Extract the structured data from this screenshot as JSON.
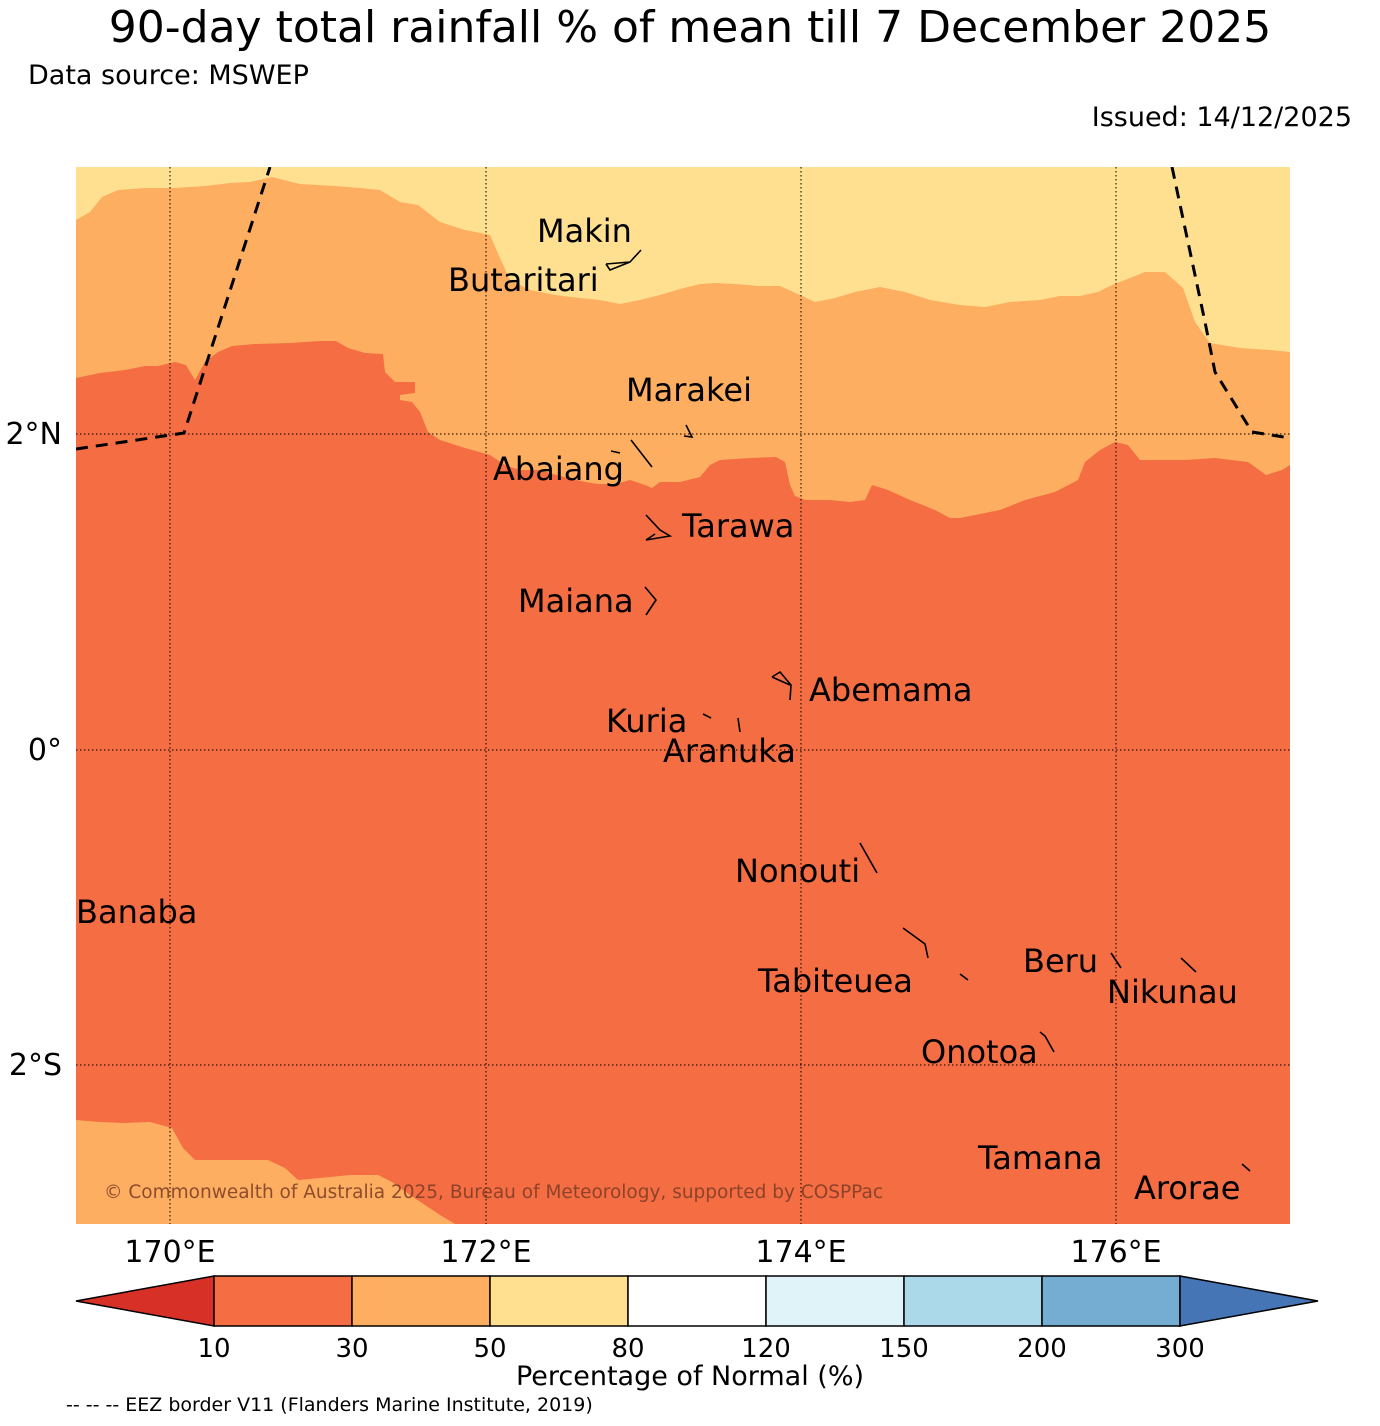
{
  "title": "90-day total rainfall % of mean till 7 December 2025",
  "data_source": "Data source: MSWEP",
  "issued": "Issued: 14/12/2025",
  "copyright": "© Commonwealth of Australia 2025, Bureau of Meteorology, supported by COSPPac",
  "axes": {
    "lon_labels": [
      "170°E",
      "172°E",
      "174°E",
      "176°E"
    ],
    "lat_labels": [
      "2°N",
      "0°",
      "2°S"
    ]
  },
  "islands": {
    "makin": "Makin",
    "butaritari": "Butaritari",
    "marakei": "Marakei",
    "abaiang": "Abaiang",
    "tarawa": "Tarawa",
    "maiana": "Maiana",
    "abemama": "Abemama",
    "kuria": "Kuria",
    "aranuka": "Aranuka",
    "nonouti": "Nonouti",
    "banaba": "Banaba",
    "beru": "Beru",
    "tabiteuea": "Tabiteuea",
    "nikunau": "Nikunau",
    "onotoa": "Onotoa",
    "tamana": "Tamana",
    "arorae": "Arorae"
  },
  "colorbar": {
    "label": "Percentage of Normal (%)",
    "ticks": [
      "10",
      "30",
      "50",
      "80",
      "120",
      "150",
      "200",
      "300"
    ],
    "colors": {
      "below_10": "#d73027",
      "c10_30": "#f46d43",
      "c30_50": "#fdae61",
      "c50_80": "#fee090",
      "c80_120": "#ffffff",
      "c120_150": "#e0f3f8",
      "c150_200": "#abd9e9",
      "c200_300": "#74add1",
      "above_300": "#4575b4"
    }
  },
  "eez_note": "-- -- -- EEZ border V11 (Flanders Marine Institute, 2019)"
}
